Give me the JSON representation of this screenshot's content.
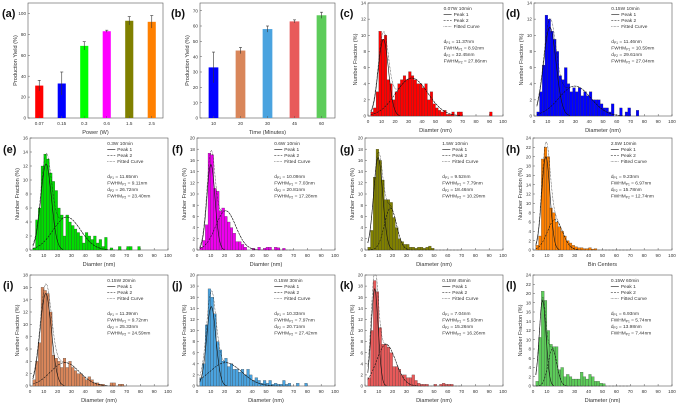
{
  "chart_data": [
    {
      "id": "a",
      "type": "bar",
      "panel_label": "(a)",
      "xlabel": "Power (W)",
      "ylabel": "Production Yield (%)",
      "ylim": [
        0,
        110
      ],
      "yticks": [
        0,
        20,
        40,
        60,
        80,
        100
      ],
      "categories": [
        "0.07",
        "0.15",
        "0.3",
        "0.6",
        "1.5",
        "2.5"
      ],
      "values": [
        31,
        33,
        69,
        83,
        93,
        92
      ],
      "errors": [
        5,
        11,
        4,
        1,
        4,
        6
      ],
      "colors": [
        "#ff0000",
        "#0000ff",
        "#00ff00",
        "#ff00ff",
        "#808000",
        "#ff8000"
      ]
    },
    {
      "id": "b",
      "type": "bar",
      "panel_label": "(b)",
      "xlabel": "Time (Minutes)",
      "ylabel": "Production Yield (%)",
      "ylim": [
        0,
        75
      ],
      "yticks": [
        0,
        10,
        20,
        30,
        40,
        50,
        60,
        70
      ],
      "categories": [
        "10",
        "20",
        "30",
        "45",
        "60"
      ],
      "values": [
        33,
        44,
        58,
        63,
        67
      ],
      "errors": [
        10,
        2,
        2,
        1,
        2
      ],
      "colors": [
        "#0000ff",
        "#d9865a",
        "#4aa3df",
        "#e85a5a",
        "#5dcc5a"
      ]
    },
    {
      "id": "c",
      "type": "histogram",
      "panel_label": "(c)",
      "title": "0.07W 10min",
      "xlabel": "Diamter (nm)",
      "ylabel": "Number Fraction (%)",
      "xlim": [
        0,
        100
      ],
      "ylim": [
        0,
        14
      ],
      "ystep": 2,
      "bin_start": 2,
      "bin_width": 2,
      "color": "#ff0000",
      "values": [
        0.5,
        1,
        3,
        10.5,
        9.5,
        10,
        4.5,
        4,
        2,
        3,
        4,
        4.5,
        5,
        4.5,
        5.5,
        5,
        4.5,
        4,
        4,
        3.5,
        4,
        2,
        3,
        1.5,
        1,
        0.7,
        0.5,
        0.7,
        0.2,
        0.2,
        0.5,
        0,
        0.5,
        0.5,
        0,
        0,
        0,
        0,
        0,
        0,
        0,
        0,
        0,
        0,
        0.5
      ],
      "peaks": [
        {
          "center": 11.37,
          "fwhm": 8.92,
          "amp": 9.5
        },
        {
          "center": 32.45,
          "fwhm": 27.86,
          "amp": 4.7
        }
      ],
      "legend": [
        "Peak 1",
        "Peak 2",
        "Fitted Curve"
      ],
      "stats": [
        {
          "sym": "d",
          "sub": "P1",
          "val": " = 11.37nm"
        },
        {
          "sym": "FWHM",
          "sub": "P1",
          "val": " = 8.92nm"
        },
        {
          "sym": "d",
          "sub": "P2",
          "val": " = 32.45nm"
        },
        {
          "sym": "FWHM",
          "sub": "P2",
          "val": " = 27.86nm"
        }
      ]
    },
    {
      "id": "d",
      "type": "histogram",
      "panel_label": "(d)",
      "title": "0.15W 10min",
      "xlabel": "Diameter (nm)",
      "ylabel": "Number Fraction (%)",
      "xlim": [
        0,
        100
      ],
      "ylim": [
        0,
        14
      ],
      "ystep": 2,
      "bin_start": 2,
      "bin_width": 2,
      "color": "#0000ff",
      "values": [
        0.5,
        3,
        6.3,
        12.5,
        12,
        10.5,
        9.5,
        8,
        5,
        4.5,
        6,
        4,
        3,
        3.5,
        3,
        3.5,
        2.5,
        3,
        2.5,
        3,
        2,
        2,
        2,
        1.5,
        1,
        1,
        0.5,
        1.5,
        0,
        0,
        1,
        0,
        0.5,
        1,
        0,
        0,
        0.7
      ],
      "peaks": [
        {
          "center": 11.46,
          "fwhm": 10.59,
          "amp": 11
        },
        {
          "center": 29.61,
          "fwhm": 27.04,
          "amp": 3.7
        }
      ],
      "legend": [
        "Peak 1",
        "Peak 2",
        "Fitted Curve"
      ],
      "stats": [
        {
          "sym": "d",
          "sub": "P1",
          "val": " = 11.46nm"
        },
        {
          "sym": "FWHM",
          "sub": "P1",
          "val": " = 10.59nm"
        },
        {
          "sym": "d",
          "sub": "P2",
          "val": " = 29.61nm"
        },
        {
          "sym": "FWHM",
          "sub": "P2",
          "val": " = 27.04nm"
        }
      ]
    },
    {
      "id": "e",
      "type": "histogram",
      "panel_label": "(e)",
      "title": "0.3W 10min",
      "xlabel": "Diamter (nm)",
      "ylabel": "Number Fraction (%)",
      "xlim": [
        0,
        100
      ],
      "ylim": [
        0,
        16
      ],
      "ystep": 2,
      "bin_start": 2,
      "bin_width": 2,
      "color": "#00dd00",
      "values": [
        0.3,
        4.3,
        6,
        12,
        13.7,
        13,
        11,
        9.8,
        8.5,
        6,
        5,
        2,
        5,
        4,
        3.5,
        3,
        2.5,
        2,
        1,
        2.5,
        2,
        1.5,
        2,
        1,
        1.5,
        0.5,
        1.8,
        0,
        0.3,
        0,
        0,
        0.5,
        0,
        0,
        0.5,
        0.5,
        0,
        0,
        0.5
      ],
      "peaks": [
        {
          "center": 11.65,
          "fwhm": 9.11,
          "amp": 12.3
        },
        {
          "center": 26.72,
          "fwhm": 23.4,
          "amp": 4.7
        }
      ],
      "legend": [
        "Peak 1",
        "Peak 2",
        "Fitted Curve"
      ],
      "stats": [
        {
          "sym": "d",
          "sub": "P1",
          "val": " = 11.65nm"
        },
        {
          "sym": "FWHM",
          "sub": "P1",
          "val": " = 9.11nm"
        },
        {
          "sym": "d",
          "sub": "P2",
          "val": " = 26.72nm"
        },
        {
          "sym": "FWHM",
          "sub": "P2",
          "val": " = 23.40nm"
        }
      ]
    },
    {
      "id": "f",
      "type": "histogram",
      "panel_label": "(f)",
      "title": "0.6W 10min",
      "xlabel": "Diamter (nm)",
      "ylabel": "Number Fraction (%)",
      "xlim": [
        0,
        100
      ],
      "ylim": [
        0,
        20
      ],
      "ystep": 2,
      "bin_start": 2,
      "bin_width": 2,
      "color": "#ee00ee",
      "values": [
        0.5,
        1.7,
        4.5,
        17.3,
        17,
        11,
        10.5,
        7,
        7.5,
        6,
        5,
        4,
        3,
        1.5,
        1.5,
        1,
        0.5,
        0,
        0,
        0.3,
        0,
        0.5,
        0,
        0.3,
        0.5,
        0.5,
        0,
        0.5,
        0.4,
        0,
        0.3
      ],
      "peaks": [
        {
          "center": 10.09,
          "fwhm": 7.03,
          "amp": 15.3
        },
        {
          "center": 20.81,
          "fwhm": 17.28,
          "amp": 7
        }
      ],
      "legend": [
        "Peak 1",
        "Peak 2",
        "Fitted Curve"
      ],
      "stats": [
        {
          "sym": "d",
          "sub": "P1",
          "val": " = 10.09nm"
        },
        {
          "sym": "FWHM",
          "sub": "P1",
          "val": " = 7.03nm"
        },
        {
          "sym": "d",
          "sub": "P2",
          "val": " = 20.81nm"
        },
        {
          "sym": "FWHM",
          "sub": "P2",
          "val": " = 17.28nm"
        }
      ]
    },
    {
      "id": "g",
      "type": "histogram",
      "panel_label": "(g)",
      "title": "1.5W 10min",
      "xlabel": "Diameter (nm)",
      "ylabel": "Number Fraction (%)",
      "xlim": [
        0,
        100
      ],
      "ylim": [
        0,
        20
      ],
      "ystep": 2,
      "bin_start": 2,
      "bin_width": 2,
      "color": "#808000",
      "values": [
        0.5,
        3.5,
        13,
        18,
        16,
        12.5,
        9,
        9,
        8.5,
        5.8,
        4,
        2,
        1.5,
        1,
        1,
        0.5,
        0.5,
        0.3,
        0.5,
        0.5,
        0.3,
        0.5,
        0.7,
        0.3
      ],
      "peaks": [
        {
          "center": 9.52,
          "fwhm": 7.79,
          "amp": 16.5
        },
        {
          "center": 18.46,
          "fwhm": 10.29,
          "amp": 7.5
        }
      ],
      "legend": [
        "Peak 1",
        "Peak 2",
        "Fitted Curve"
      ],
      "stats": [
        {
          "sym": "d",
          "sub": "P1",
          "val": " = 9.52nm"
        },
        {
          "sym": "FWHM",
          "sub": "P1",
          "val": " = 7.79nm"
        },
        {
          "sym": "d",
          "sub": "P2",
          "val": " = 18.46nm"
        },
        {
          "sym": "FWHM",
          "sub": "P2",
          "val": " = 10.29nm"
        }
      ]
    },
    {
      "id": "h",
      "type": "histogram",
      "panel_label": "(h)",
      "title": "2.5W 10min",
      "xlabel": "Bin Centers",
      "ylabel": "Number Fraction (%)",
      "xlim": [
        0,
        100
      ],
      "ylim": [
        0,
        24
      ],
      "ystep": 2,
      "bin_start": 2,
      "bin_width": 2,
      "color": "#ff8000",
      "values": [
        1,
        3,
        19.5,
        22,
        20,
        9,
        8,
        6,
        5,
        4,
        3,
        2,
        1.5,
        1,
        0.7,
        0.5,
        0.5,
        0.3,
        0.3,
        0.5,
        0.2,
        0.3
      ],
      "peaks": [
        {
          "center": 9.23,
          "fwhm": 6.97,
          "amp": 20
        },
        {
          "center": 15.78,
          "fwhm": 12.74,
          "amp": 6.5
        }
      ],
      "legend": [
        "Peak 1",
        "Peak 2",
        "Fitted Curve"
      ],
      "stats": [
        {
          "sym": "d",
          "sub": "P1",
          "val": " = 9.23nm"
        },
        {
          "sym": "FWHM",
          "sub": "P1",
          "val": " = 6.97nm"
        },
        {
          "sym": "d",
          "sub": "P2",
          "val": " = 15.78nm"
        },
        {
          "sym": "FWHM",
          "sub": "P2",
          "val": " = 12.74nm"
        }
      ]
    },
    {
      "id": "i",
      "type": "histogram",
      "panel_label": "(i)",
      "title": "0.15W 20min",
      "xlabel": "Diameter (nm)",
      "ylabel": "Number Fraction (%)",
      "xlim": [
        0,
        100
      ],
      "ylim": [
        0,
        18
      ],
      "ystep": 2,
      "bin_start": 2,
      "bin_width": 2,
      "color": "#d9865a",
      "values": [
        1,
        4,
        7,
        16,
        15.5,
        15,
        12,
        5,
        4.5,
        4,
        3,
        4.5,
        3,
        4,
        3,
        2.5,
        2,
        2,
        1.5,
        1,
        1.5,
        1,
        0.5,
        0.5,
        0.3,
        0.3,
        0,
        0,
        0.5,
        0.5,
        0,
        0.3,
        0.3
      ],
      "peaks": [
        {
          "center": 11.39,
          "fwhm": 9.72,
          "amp": 15
        },
        {
          "center": 25.33,
          "fwhm": 24.59,
          "amp": 3.8
        }
      ],
      "legend": [
        "Peak 1",
        "Peak 2",
        "Fitted Curve"
      ],
      "stats": [
        {
          "sym": "d",
          "sub": "P1",
          "val": " = 11.39nm"
        },
        {
          "sym": "FWHM",
          "sub": "P1",
          "val": " = 9.72nm"
        },
        {
          "sym": "d",
          "sub": "P2",
          "val": " = 25.33nm"
        },
        {
          "sym": "FWHM",
          "sub": "P2",
          "val": " = 24.59nm"
        }
      ]
    },
    {
      "id": "j",
      "type": "histogram",
      "panel_label": "(j)",
      "title": "0.15W 30min",
      "xlabel": "Diameter (nm)",
      "ylabel": "Number Fraction (%)",
      "xlim": [
        0,
        100
      ],
      "ylim": [
        0,
        20
      ],
      "ystep": 2,
      "bin_start": 2,
      "bin_width": 2,
      "color": "#4aa3df",
      "values": [
        1.5,
        4,
        11,
        17.5,
        16,
        13,
        8,
        6.5,
        4.5,
        5,
        3.5,
        4,
        3,
        3,
        2.5,
        3,
        2,
        3,
        2,
        1,
        1.5,
        1,
        0.5,
        1,
        0.5,
        1,
        0.3,
        0.5,
        0.3,
        0.3,
        1,
        0.3,
        0.5,
        0,
        0,
        0.5,
        0,
        0,
        0.5
      ],
      "peaks": [
        {
          "center": 10.33,
          "fwhm": 7.97,
          "amp": 14.3
        },
        {
          "center": 20.71,
          "fwhm": 27.42,
          "amp": 4.2
        }
      ],
      "legend": [
        "Peak 1",
        "Peak 2",
        "Fitted Curve"
      ],
      "stats": [
        {
          "sym": "d",
          "sub": "P1",
          "val": " = 10.33nm"
        },
        {
          "sym": "FWHM",
          "sub": "P1",
          "val": " = 7.97nm"
        },
        {
          "sym": "d",
          "sub": "P2",
          "val": " = 20.71nm"
        },
        {
          "sym": "FWHM",
          "sub": "P2",
          "val": " = 27.42nm"
        }
      ]
    },
    {
      "id": "k",
      "type": "histogram",
      "panel_label": "(k)",
      "title": "0.15W 45min",
      "xlabel": "Diameter (nm)",
      "ylabel": "Number Fraction (%)",
      "xlim": [
        0,
        100
      ],
      "ylim": [
        0,
        20
      ],
      "ystep": 2,
      "bin_start": 2,
      "bin_width": 2,
      "color": "#e85a5a",
      "values": [
        1.5,
        10,
        19,
        17,
        10.5,
        7.5,
        7.5,
        7,
        6,
        3.5,
        3.5,
        3,
        2,
        2,
        1.5,
        1.5,
        2,
        1,
        0.5,
        0.3,
        0.3,
        0.3,
        0,
        0,
        0.3,
        0,
        0.3,
        0.5,
        0.3,
        0.3,
        0.3
      ],
      "peaks": [
        {
          "center": 7.04,
          "fwhm": 5.93,
          "amp": 17.5
        },
        {
          "center": 15.26,
          "fwhm": 16.26,
          "amp": 7.5
        }
      ],
      "legend": [
        "Peak 1",
        "Peak 2",
        "Fitted Curve"
      ],
      "stats": [
        {
          "sym": "d",
          "sub": "P1",
          "val": " = 7.04nm"
        },
        {
          "sym": "FWHM",
          "sub": "P1",
          "val": " = 5.93nm"
        },
        {
          "sym": "d",
          "sub": "P2",
          "val": " = 15.26nm"
        },
        {
          "sym": "FWHM",
          "sub": "P2",
          "val": " = 16.26nm"
        }
      ]
    },
    {
      "id": "l",
      "type": "histogram",
      "panel_label": "(l)",
      "title": "0.15W 60min",
      "xlabel": "Diameter (nm)",
      "ylabel": "Number Fraction (%)",
      "xlim": [
        0,
        100
      ],
      "ylim": [
        0,
        24
      ],
      "ystep": 2,
      "bin_start": 2,
      "bin_width": 2,
      "color": "#5dcc5a",
      "values": [
        1,
        10.5,
        20.5,
        18.5,
        12,
        9,
        8.5,
        8.5,
        3.5,
        4,
        2,
        2.5,
        2,
        1.5,
        1.5,
        1.5,
        3,
        2,
        1.5,
        2.5,
        2,
        1,
        1,
        0.6,
        0.5
      ],
      "peaks": [
        {
          "center": 6.93,
          "fwhm": 5.74,
          "amp": 18.5
        },
        {
          "center": 13.98,
          "fwhm": 7.44,
          "amp": 8
        }
      ],
      "legend": [
        "Peak 1",
        "Peak 2",
        "Fitted Curve"
      ],
      "stats": [
        {
          "sym": "d",
          "sub": "P1",
          "val": " = 6.93nm"
        },
        {
          "sym": "FWHM",
          "sub": "P1",
          "val": " = 5.74nm"
        },
        {
          "sym": "d",
          "sub": "P2",
          "val": " = 13.98nm"
        },
        {
          "sym": "FWHM",
          "sub": "P2",
          "val": " = 7.44nm"
        }
      ]
    }
  ]
}
